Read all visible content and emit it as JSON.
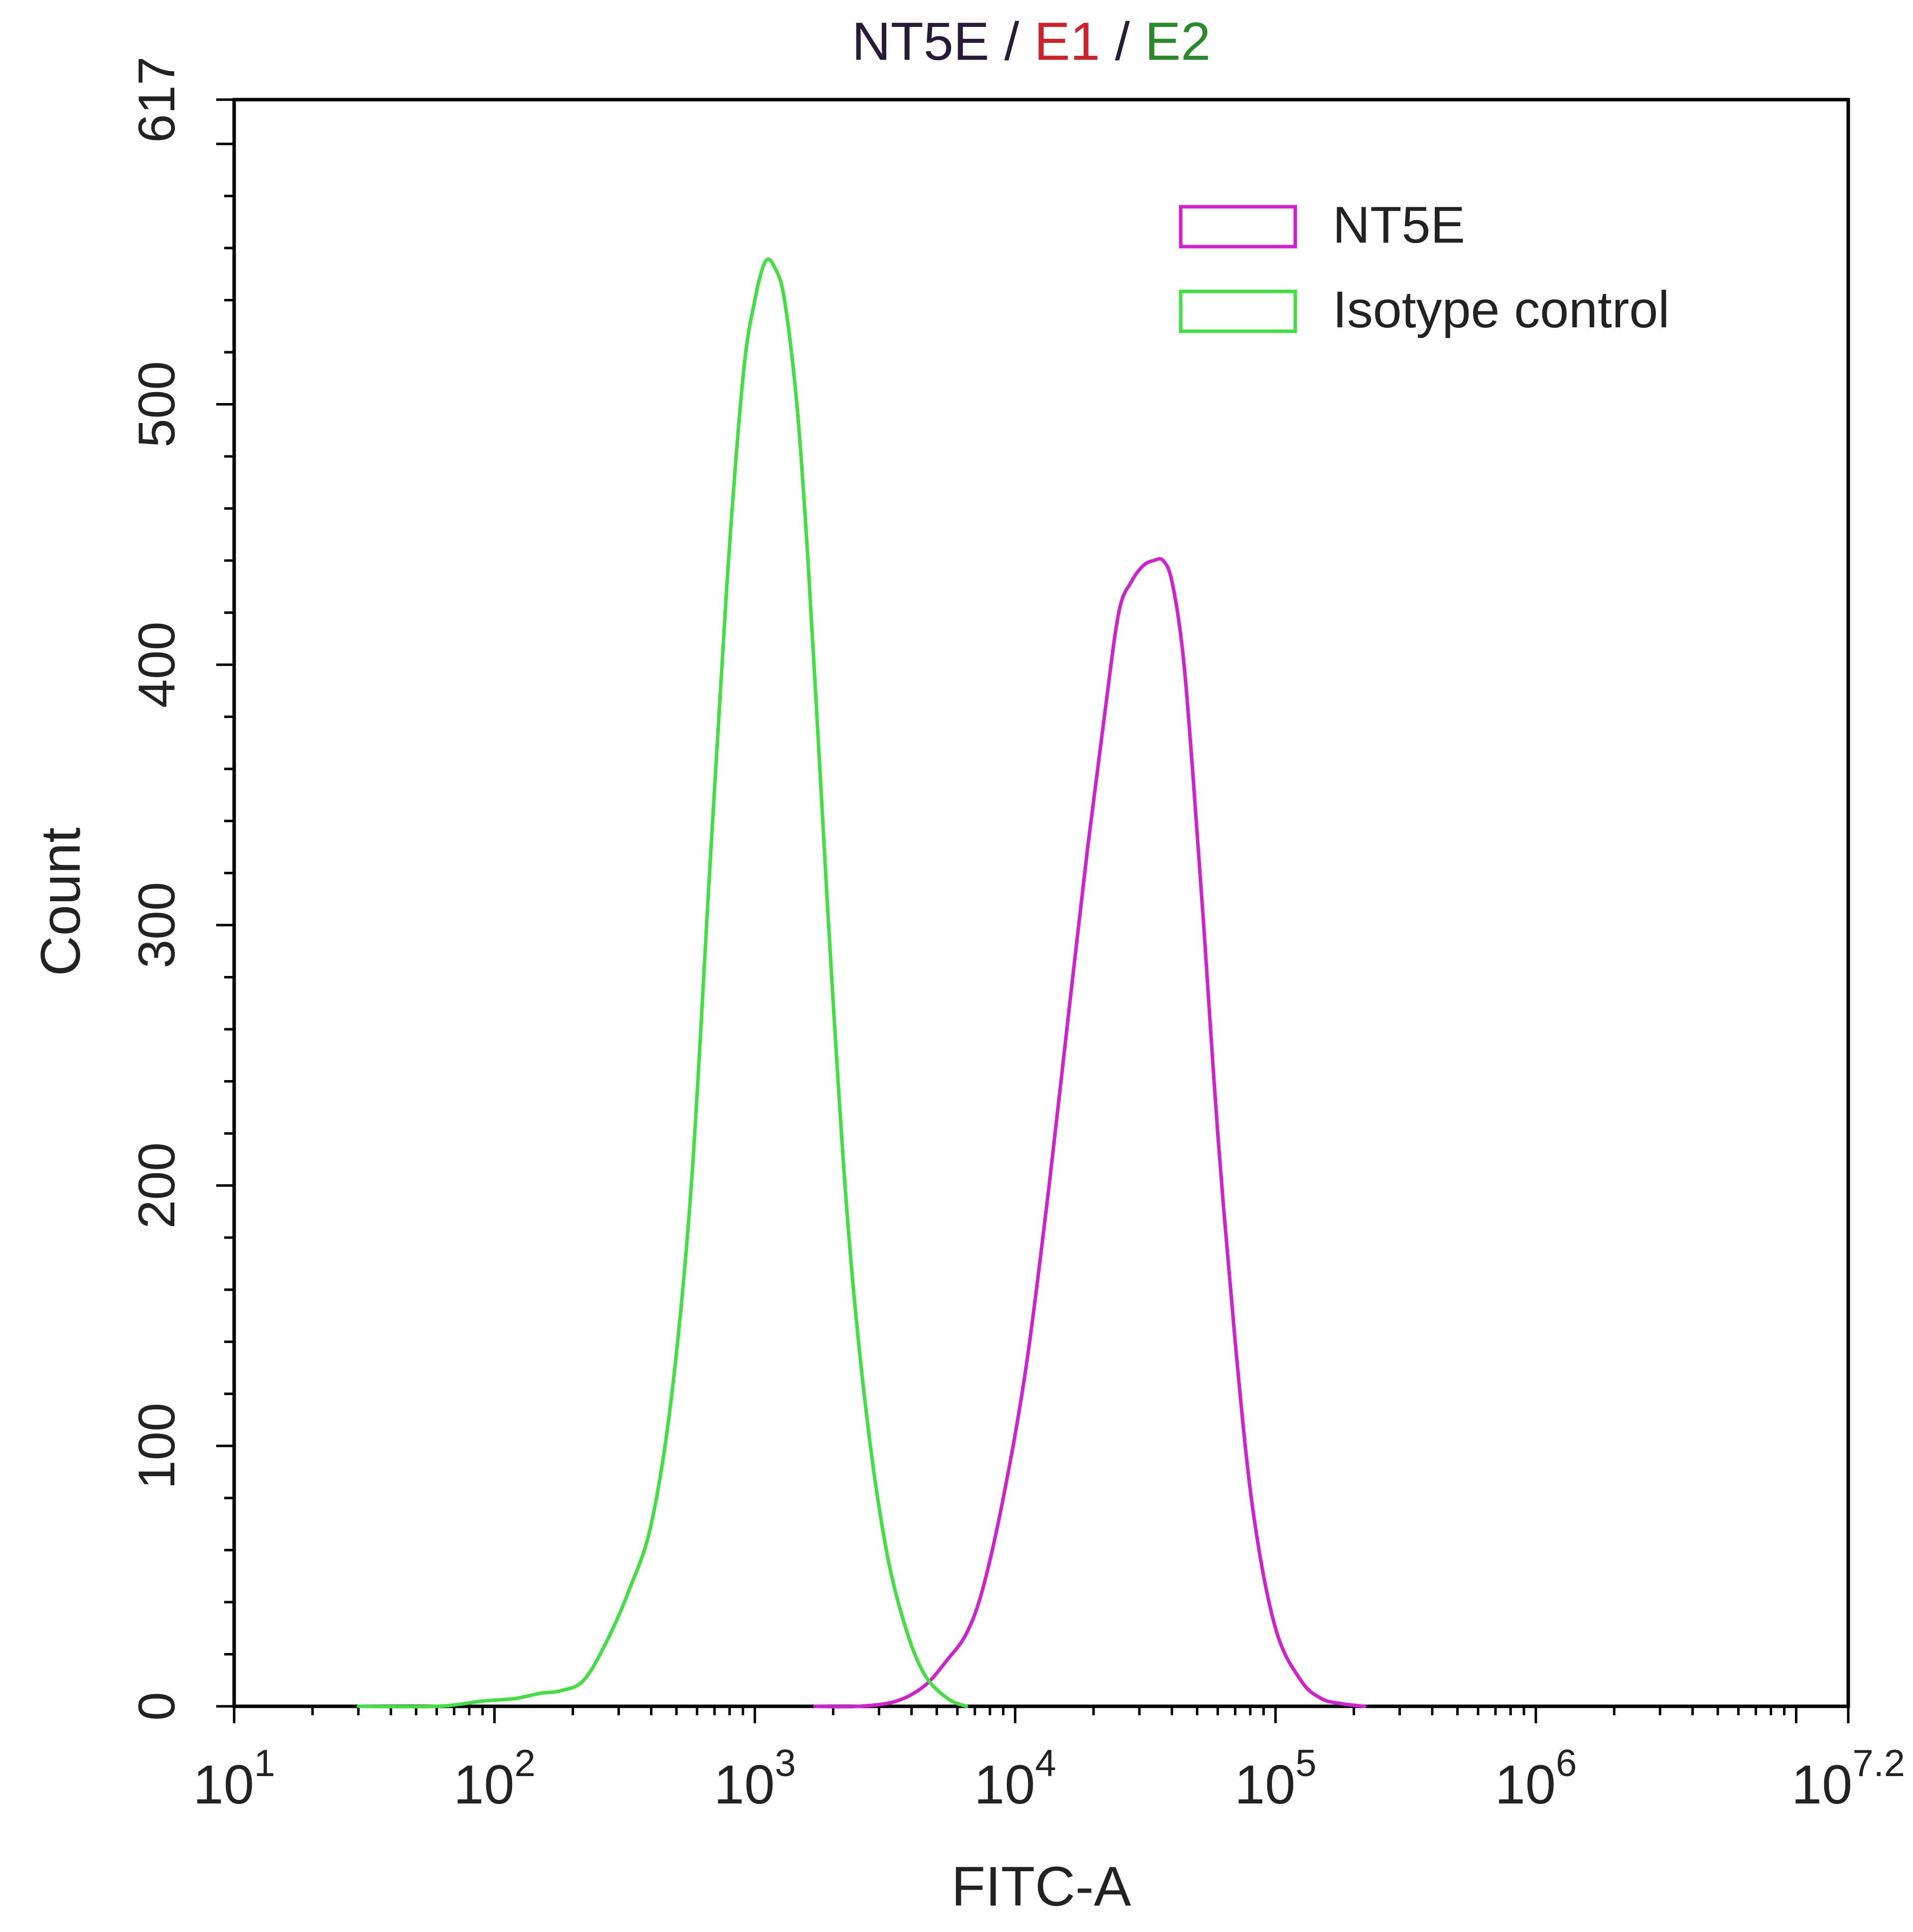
{
  "chart_data": {
    "type": "line",
    "title_parts": [
      {
        "text": "NT5E",
        "color": "#2a1a3a"
      },
      {
        "text": " / ",
        "color": "#2a1a3a"
      },
      {
        "text": "E1",
        "color": "#d0202a"
      },
      {
        "text": " / ",
        "color": "#2a1a3a"
      },
      {
        "text": "E2",
        "color": "#2a8a2a"
      }
    ],
    "xlabel": "FITC-A",
    "ylabel": "Count",
    "x_scale": "log",
    "xlim": [
      10,
      15848932
    ],
    "ylim": [
      0,
      617
    ],
    "y_ticks": [
      0,
      100,
      200,
      300,
      400,
      500,
      617
    ],
    "y_tick_labels": [
      "0",
      "100",
      "200",
      "300",
      "400",
      "500",
      "617"
    ],
    "x_ticks": [
      {
        "base": "10",
        "exp": "1"
      },
      {
        "base": "10",
        "exp": "2"
      },
      {
        "base": "10",
        "exp": "3"
      },
      {
        "base": "10",
        "exp": "4"
      },
      {
        "base": "10",
        "exp": "5"
      },
      {
        "base": "10",
        "exp": "6"
      },
      {
        "base": "10",
        "exp": "7.2"
      }
    ],
    "grid": false,
    "legend_position": "top-right",
    "series": [
      {
        "name": "NT5E",
        "color": "#d020d0",
        "x": [
          1700,
          2500,
          3500,
          4500,
          5500,
          6500,
          7500,
          9000,
          11000,
          13500,
          16000,
          19000,
          22000,
          25000,
          28000,
          31000,
          34000,
          37000,
          40000,
          44000,
          48000,
          53000,
          60000,
          70000,
          82000,
          100000,
          125000,
          150000,
          180000,
          220000
        ],
        "y": [
          0,
          0,
          2,
          8,
          18,
          28,
          45,
          80,
          130,
          200,
          265,
          330,
          380,
          420,
          432,
          438,
          440,
          440,
          432,
          405,
          360,
          300,
          220,
          140,
          75,
          30,
          10,
          3,
          1,
          0
        ]
      },
      {
        "name": "Isotype control",
        "color": "#40e040",
        "x": [
          30,
          60,
          90,
          120,
          150,
          180,
          220,
          270,
          330,
          400,
          480,
          570,
          670,
          780,
          900,
          1000,
          1100,
          1200,
          1300,
          1450,
          1600,
          1800,
          2000,
          2300,
          2700,
          3200,
          3800,
          4500,
          5500,
          6500
        ],
        "y": [
          0,
          0,
          2,
          3,
          5,
          6,
          10,
          25,
          45,
          70,
          120,
          200,
          320,
          430,
          510,
          540,
          555,
          552,
          540,
          500,
          440,
          350,
          270,
          180,
          110,
          60,
          30,
          12,
          3,
          0
        ]
      }
    ]
  }
}
